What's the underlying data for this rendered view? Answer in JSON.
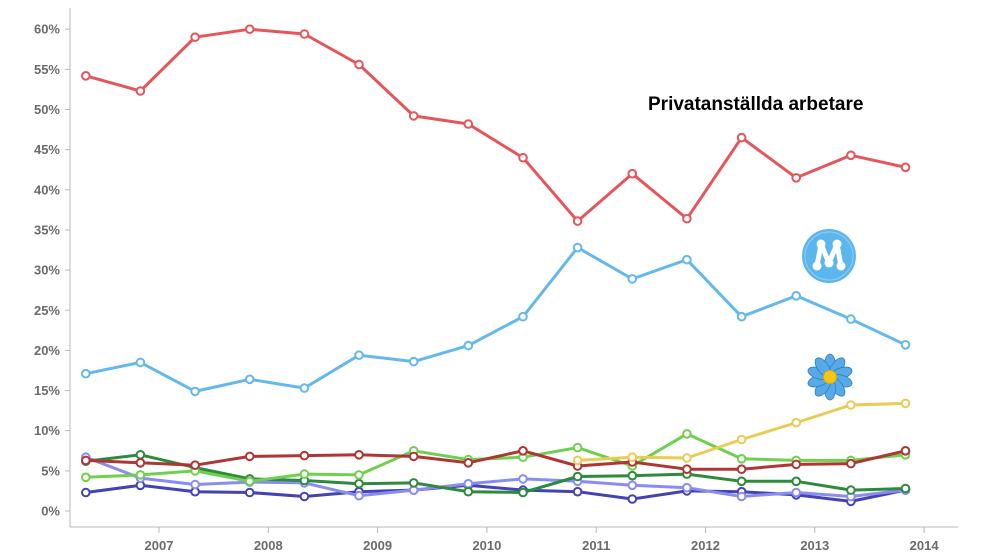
{
  "chart_data": {
    "type": "line",
    "title": "",
    "xlabel": "",
    "ylabel": "",
    "x_ticks": [
      "2007",
      "2008",
      "2009",
      "2010",
      "2011",
      "2012",
      "2013",
      "2014"
    ],
    "y_ticks": [
      "0%",
      "5%",
      "10%",
      "15%",
      "20%",
      "25%",
      "30%",
      "35%",
      "40%",
      "45%",
      "50%",
      "55%",
      "60%"
    ],
    "ylim": [
      0,
      62
    ],
    "xlim": [
      2006.2,
      2014.2
    ],
    "grid": false,
    "annotation": "Privatanställda arbetare",
    "icons": [
      {
        "name": "moderaterna-logo-icon",
        "color": "#5ab6ec"
      },
      {
        "name": "sd-flower-icon",
        "color": "#57a9e8"
      }
    ],
    "x": [
      2006.33,
      2006.83,
      2007.33,
      2007.83,
      2008.33,
      2008.83,
      2009.33,
      2009.83,
      2010.33,
      2010.83,
      2011.33,
      2011.83,
      2012.33,
      2012.83,
      2013.33,
      2013.83
    ],
    "series": [
      {
        "color": "#e5565b",
        "values": [
          54.2,
          52.3,
          59.0,
          60.0,
          59.4,
          55.6,
          49.2,
          48.2,
          44.0,
          36.1,
          42.0,
          36.4,
          46.5,
          41.5,
          44.3,
          42.8
        ]
      },
      {
        "color": "#65b8ec",
        "values": [
          17.1,
          18.5,
          14.9,
          16.4,
          15.3,
          19.4,
          18.6,
          20.6,
          24.2,
          32.8,
          28.9,
          31.3,
          24.2,
          26.8,
          23.9,
          20.7
        ]
      },
      {
        "color": "#e8cc56",
        "values": [
          null,
          null,
          null,
          null,
          null,
          null,
          null,
          null,
          null,
          6.3,
          6.7,
          6.6,
          8.9,
          11.0,
          13.2,
          13.4
        ]
      },
      {
        "color": "#b03535",
        "values": [
          6.3,
          6.0,
          5.7,
          6.8,
          6.9,
          7.0,
          6.8,
          6.0,
          7.5,
          5.6,
          6.1,
          5.2,
          5.2,
          5.8,
          5.9,
          7.5
        ]
      },
      {
        "color": "#6fd04f",
        "values": [
          4.2,
          4.5,
          5.0,
          3.7,
          4.6,
          4.5,
          7.5,
          6.4,
          6.7,
          7.9,
          5.6,
          9.6,
          6.5,
          6.3,
          6.3,
          7.0
        ]
      },
      {
        "color": "#2e8a3c",
        "values": [
          6.2,
          7.0,
          5.4,
          4.0,
          3.8,
          3.4,
          3.5,
          2.4,
          2.3,
          4.3,
          4.4,
          4.6,
          3.7,
          3.7,
          2.6,
          2.8
        ]
      },
      {
        "color": "#8a8cf0",
        "values": [
          6.7,
          4.1,
          3.3,
          3.6,
          3.5,
          1.9,
          2.6,
          3.4,
          4.0,
          3.7,
          3.2,
          2.9,
          1.8,
          2.3,
          1.8,
          2.6
        ]
      },
      {
        "color": "#4343b3",
        "values": [
          2.3,
          3.2,
          2.4,
          2.3,
          1.8,
          2.4,
          2.6,
          3.2,
          2.6,
          2.4,
          1.5,
          2.5,
          2.4,
          2.0,
          1.2,
          2.6
        ]
      }
    ]
  }
}
